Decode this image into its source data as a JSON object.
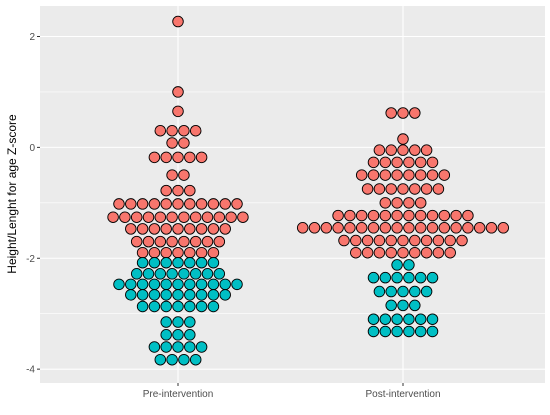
{
  "chart_data": {
    "type": "scatter",
    "subtype": "dotplot",
    "title": "",
    "xlabel": "",
    "ylabel": "Height/Lenght for age Z-score",
    "categories": [
      "Pre-intervention",
      "Post-intervention"
    ],
    "ylim": [
      -4.25,
      2.55
    ],
    "yticks": [
      2,
      0,
      -2,
      -4
    ],
    "grid": true,
    "legend": "none",
    "colors": {
      "above_minus2": "#F8766D",
      "below_minus2": "#00BFC4",
      "panel": "#EBEBEB",
      "grid": "#FFFFFF",
      "outline": "#000000"
    },
    "groups": [
      {
        "name": "Pre-intervention",
        "rows": [
          {
            "y": 2.27,
            "n": 1
          },
          {
            "y": 1.0,
            "n": 1
          },
          {
            "y": 0.65,
            "n": 1
          },
          {
            "y": 0.3,
            "n": 4
          },
          {
            "y": 0.08,
            "n": 2
          },
          {
            "y": -0.18,
            "n": 5
          },
          {
            "y": -0.5,
            "n": 2
          },
          {
            "y": -0.78,
            "n": 3
          },
          {
            "y": -1.02,
            "n": 11
          },
          {
            "y": -1.26,
            "n": 12
          },
          {
            "y": -1.47,
            "n": 9
          },
          {
            "y": -1.7,
            "n": 8
          },
          {
            "y": -1.9,
            "n": 7
          },
          {
            "y": -2.08,
            "n": 7
          },
          {
            "y": -2.28,
            "n": 8
          },
          {
            "y": -2.47,
            "n": 11
          },
          {
            "y": -2.66,
            "n": 9
          },
          {
            "y": -2.87,
            "n": 7
          },
          {
            "y": -3.15,
            "n": 3
          },
          {
            "y": -3.38,
            "n": 3
          },
          {
            "y": -3.6,
            "n": 5
          },
          {
            "y": -3.83,
            "n": 4
          }
        ]
      },
      {
        "name": "Post-intervention",
        "rows": [
          {
            "y": 0.62,
            "n": 3
          },
          {
            "y": 0.15,
            "n": 1
          },
          {
            "y": -0.05,
            "n": 5
          },
          {
            "y": -0.27,
            "n": 6
          },
          {
            "y": -0.5,
            "n": 8
          },
          {
            "y": -0.75,
            "n": 7
          },
          {
            "y": -1.0,
            "n": 4
          },
          {
            "y": -1.23,
            "n": 12
          },
          {
            "y": -1.45,
            "n": 18
          },
          {
            "y": -1.68,
            "n": 11
          },
          {
            "y": -1.9,
            "n": 9
          },
          {
            "y": -2.12,
            "n": 2
          },
          {
            "y": -2.35,
            "n": 6
          },
          {
            "y": -2.6,
            "n": 5
          },
          {
            "y": -2.85,
            "n": 3
          },
          {
            "y": -3.1,
            "n": 6
          },
          {
            "y": -3.32,
            "n": 6
          }
        ]
      }
    ]
  }
}
